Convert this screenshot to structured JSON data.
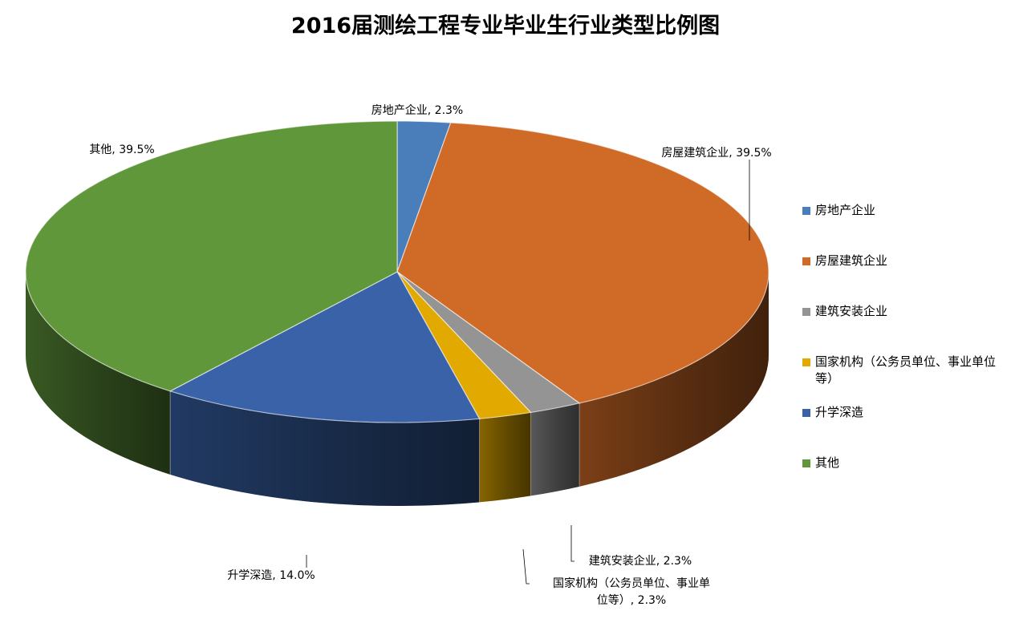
{
  "chart_data": {
    "type": "pie",
    "title": "2016届测绘工程专业毕业生行业类型比例图",
    "slices": [
      {
        "name": "房地产企业",
        "value": 2.3,
        "label": "房地产企业, 2.3%",
        "color": "#4a7ebb"
      },
      {
        "name": "房屋建筑企业",
        "value": 39.5,
        "label": "房屋建筑企业, 39.5%",
        "color": "#d06a27"
      },
      {
        "name": "建筑安装企业",
        "value": 2.3,
        "label": "建筑安装企业, 2.3%",
        "color": "#949494"
      },
      {
        "name": "国家机构（公务员单位、事业单位等）",
        "value": 2.3,
        "label_lines": [
          "国家机构（公务员单位、事业单",
          "位等）, 2.3%"
        ],
        "color": "#e2a900"
      },
      {
        "name": "升学深造",
        "value": 14.0,
        "label": "升学深造, 14.0%",
        "color": "#3962a8"
      },
      {
        "name": "其他",
        "value": 39.5,
        "label": "其他, 39.5%",
        "color": "#61973b"
      }
    ],
    "legend": {
      "position": "right",
      "items": [
        "房地产企业",
        "房屋建筑企业",
        "建筑安装企业",
        "国家机构（公务员单位、事业单位等）",
        "升学深造",
        "其他"
      ]
    },
    "style": "3d-pie"
  }
}
